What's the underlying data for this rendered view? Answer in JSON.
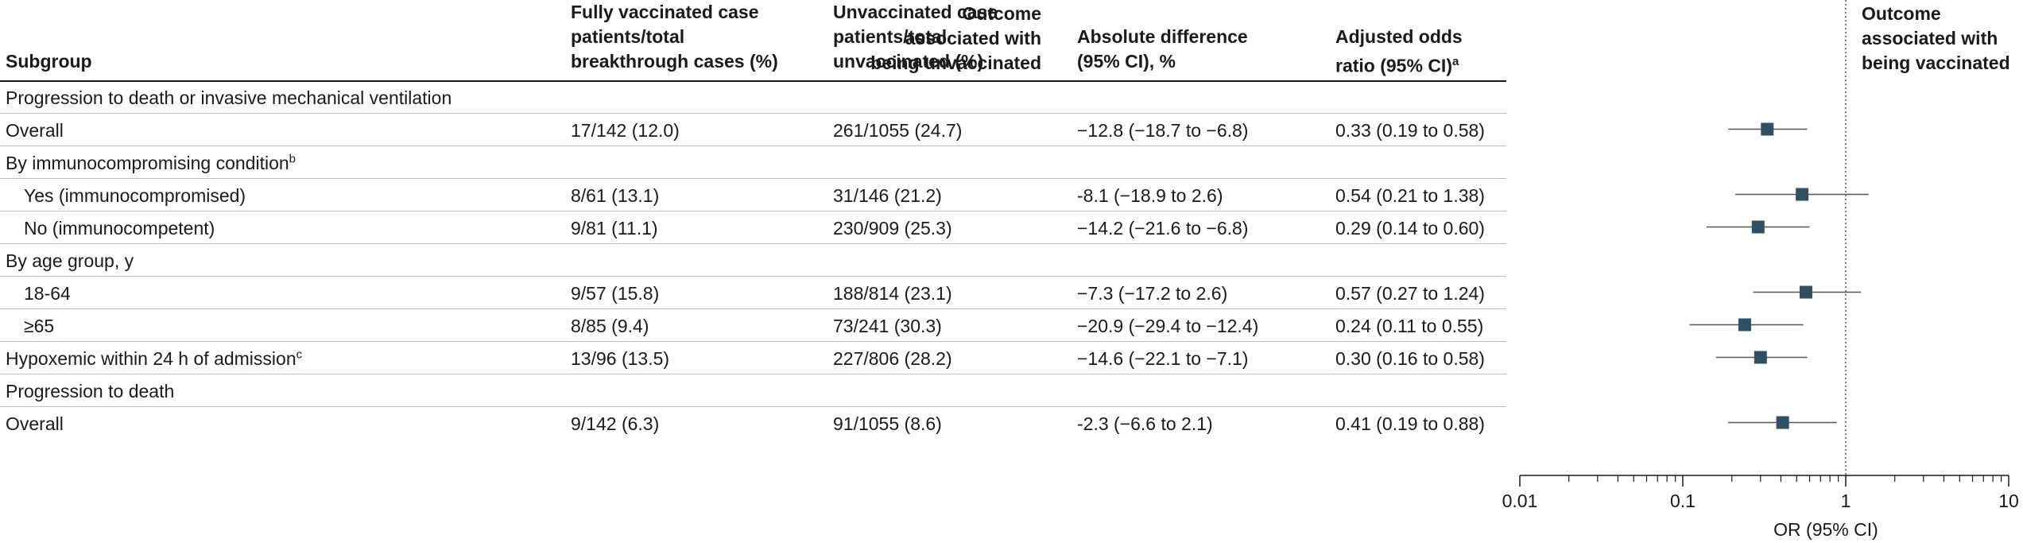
{
  "headers": {
    "subgroup": "Subgroup",
    "vaccinated": "Fully vaccinated case\npatients/total\nbreakthrough cases (%)",
    "unvaccinated": "Unvaccinated case\npatients/total\nunvaccinated (%)",
    "difference": "Absolute difference\n(95% CI), %",
    "odds_ratio": "Adjusted odds\nratio (95% CI)",
    "odds_ratio_sup": "a",
    "favor_left": "Outcome\nassociated with\nbeing unvaccinated",
    "favor_right": "Outcome\nassociated with\nbeing vaccinated"
  },
  "rows": [
    {
      "label": "Progression to death or invasive mechanical ventilation",
      "sup": "",
      "indent": false,
      "vacc": "",
      "unvacc": "",
      "diff": "",
      "or": ""
    },
    {
      "label": "Overall",
      "sup": "",
      "indent": false,
      "vacc": "17/142 (12.0)",
      "unvacc": "261/1055 (24.7)",
      "diff": "−12.8 (−18.7 to −6.8)",
      "or": "0.33 (0.19 to 0.58)"
    },
    {
      "label": "By immunocompromising condition",
      "sup": "b",
      "indent": false,
      "vacc": "",
      "unvacc": "",
      "diff": "",
      "or": ""
    },
    {
      "label": "Yes (immunocompromised)",
      "sup": "",
      "indent": true,
      "vacc": "8/61 (13.1)",
      "unvacc": "31/146 (21.2)",
      "diff": "-8.1 (−18.9 to 2.6)",
      "or": "0.54 (0.21 to 1.38)"
    },
    {
      "label": "No (immunocompetent)",
      "sup": "",
      "indent": true,
      "vacc": "9/81 (11.1)",
      "unvacc": "230/909 (25.3)",
      "diff": "−14.2 (−21.6 to −6.8)",
      "or": "0.29 (0.14 to 0.60)"
    },
    {
      "label": "By age group, y",
      "sup": "",
      "indent": false,
      "vacc": "",
      "unvacc": "",
      "diff": "",
      "or": ""
    },
    {
      "label": "18-64",
      "sup": "",
      "indent": true,
      "vacc": "9/57 (15.8)",
      "unvacc": "188/814 (23.1)",
      "diff": "−7.3 (−17.2 to 2.6)",
      "or": "0.57 (0.27 to 1.24)"
    },
    {
      "label": "≥65",
      "sup": "",
      "indent": true,
      "vacc": "8/85 (9.4)",
      "unvacc": "73/241 (30.3)",
      "diff": "−20.9 (−29.4 to −12.4)",
      "or": "0.24 (0.11 to 0.55)"
    },
    {
      "label": "Hypoxemic within 24 h of admission",
      "sup": "c",
      "indent": false,
      "vacc": "13/96 (13.5)",
      "unvacc": "227/806 (28.2)",
      "diff": "−14.6 (−22.1 to −7.1)",
      "or": "0.30 (0.16 to 0.58)"
    },
    {
      "label": "Progression to death",
      "sup": "",
      "indent": false,
      "vacc": "",
      "unvacc": "",
      "diff": "",
      "or": ""
    },
    {
      "label": "Overall",
      "sup": "",
      "indent": false,
      "vacc": "9/142 (6.3)",
      "unvacc": "91/1055 (8.6)",
      "diff": "-2.3 (−6.6 to 2.1)",
      "or": "0.41 (0.19 to 0.88)"
    }
  ],
  "chart_data": {
    "type": "scatter",
    "subtype": "forest-plot",
    "xscale": "log",
    "xlim": [
      0.01,
      10
    ],
    "xticks": [
      0.01,
      0.1,
      1,
      10
    ],
    "xtick_labels": [
      "0.01",
      "0.1",
      "1",
      "10"
    ],
    "xlabel": "OR (95% CI)",
    "reference_line": 1,
    "marker_color": "#2e5060",
    "points": [
      {
        "row": 1,
        "or": 0.33,
        "lo": 0.19,
        "hi": 0.58
      },
      {
        "row": 3,
        "or": 0.54,
        "lo": 0.21,
        "hi": 1.38
      },
      {
        "row": 4,
        "or": 0.29,
        "lo": 0.14,
        "hi": 0.6
      },
      {
        "row": 6,
        "or": 0.57,
        "lo": 0.27,
        "hi": 1.24
      },
      {
        "row": 7,
        "or": 0.24,
        "lo": 0.11,
        "hi": 0.55
      },
      {
        "row": 8,
        "or": 0.3,
        "lo": 0.16,
        "hi": 0.58
      },
      {
        "row": 10,
        "or": 0.41,
        "lo": 0.19,
        "hi": 0.88
      }
    ]
  }
}
